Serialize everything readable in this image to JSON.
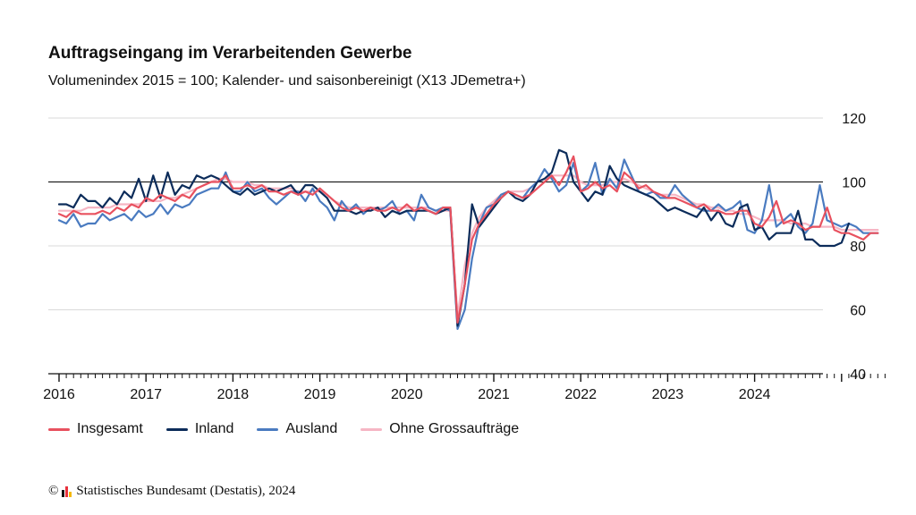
{
  "header": {
    "title": "Auftragseingang im Verarbeitenden Gewerbe",
    "subtitle": "Volumenindex 2015 = 100; Kalender- und saisonbereinigt (X13 JDemetra+)"
  },
  "footer": {
    "copyright_symbol": "©",
    "credit": "Statistisches Bundesamt (Destatis), 2024",
    "logo_colors": [
      "#111111",
      "#e8313c",
      "#f5b800"
    ]
  },
  "chart_data": {
    "type": "line",
    "x_start": "2016-01",
    "x_frequency": "monthly",
    "x_tick_labels": [
      "2016",
      "2017",
      "2018",
      "2019",
      "2020",
      "2021",
      "2022",
      "2023",
      "2024"
    ],
    "ylim": [
      40,
      120
    ],
    "y_ticks": [
      40,
      60,
      80,
      100,
      120
    ],
    "y_axis_side": "right",
    "reference_line": 100,
    "grid": "horizontal",
    "legend_position": "bottom-left",
    "series": [
      {
        "name": "Insgesamt",
        "color": "#e8515f",
        "values": [
          90,
          89,
          91,
          90,
          90,
          90,
          91,
          90,
          92,
          91,
          93,
          92,
          95,
          94,
          96,
          95,
          94,
          96,
          95,
          98,
          99,
          100,
          100,
          102,
          98,
          98,
          99,
          98,
          99,
          97,
          97,
          96,
          97,
          96,
          97,
          96,
          98,
          96,
          94,
          92,
          91,
          92,
          91,
          92,
          91,
          91,
          92,
          91,
          93,
          91,
          92,
          91,
          90,
          92,
          92,
          56,
          68,
          82,
          87,
          90,
          93,
          95,
          97,
          96,
          95,
          96,
          98,
          100,
          102,
          99,
          103,
          108,
          97,
          98,
          100,
          98,
          99,
          97,
          103,
          101,
          98,
          99,
          97,
          96,
          95,
          95,
          94,
          93,
          92,
          93,
          91,
          91,
          90,
          90,
          91,
          91,
          87,
          86,
          89,
          94,
          87,
          88,
          87,
          85,
          86,
          86,
          92,
          85,
          84,
          84,
          83,
          82,
          84,
          84
        ]
      },
      {
        "name": "Inland",
        "color": "#0c2c5a",
        "values": [
          93,
          93,
          92,
          96,
          94,
          94,
          92,
          95,
          93,
          97,
          95,
          101,
          94,
          102,
          95,
          103,
          96,
          99,
          98,
          102,
          101,
          102,
          101,
          99,
          97,
          96,
          98,
          96,
          97,
          98,
          97,
          98,
          99,
          96,
          99,
          99,
          97,
          95,
          91,
          91,
          91,
          90,
          91,
          91,
          92,
          89,
          91,
          90,
          91,
          91,
          91,
          91,
          90,
          91,
          92,
          55,
          68,
          93,
          86,
          89,
          92,
          95,
          97,
          95,
          94,
          96,
          100,
          101,
          103,
          110,
          109,
          100,
          97,
          94,
          97,
          96,
          105,
          101,
          99,
          98,
          97,
          96,
          95,
          93,
          91,
          92,
          91,
          90,
          89,
          92,
          88,
          91,
          87,
          86,
          92,
          93,
          85,
          86,
          82,
          84,
          84,
          84,
          91,
          82,
          82,
          80,
          80,
          80,
          81,
          87
        ]
      },
      {
        "name": "Ausland",
        "color": "#4a7bc0",
        "values": [
          88,
          87,
          90,
          86,
          87,
          87,
          90,
          88,
          89,
          90,
          88,
          91,
          89,
          90,
          93,
          90,
          93,
          92,
          93,
          96,
          97,
          98,
          98,
          103,
          97,
          97,
          100,
          97,
          98,
          95,
          93,
          95,
          97,
          97,
          94,
          98,
          94,
          92,
          88,
          94,
          91,
          93,
          90,
          92,
          91,
          92,
          94,
          90,
          91,
          88,
          96,
          92,
          91,
          92,
          91,
          54,
          60,
          76,
          87,
          92,
          93,
          96,
          97,
          96,
          95,
          98,
          100,
          104,
          101,
          97,
          99,
          106,
          97,
          99,
          106,
          96,
          101,
          98,
          107,
          102,
          97,
          96,
          97,
          95,
          95,
          99,
          96,
          94,
          92,
          91,
          91,
          93,
          91,
          92,
          94,
          85,
          84,
          88,
          99,
          86,
          88,
          90,
          86,
          84,
          87,
          99,
          88,
          87,
          86,
          87,
          86,
          84,
          84,
          84
        ]
      },
      {
        "name": "Ohne Grossaufträge",
        "color": "#f6b6c4",
        "values": [
          91,
          91,
          91,
          91,
          92,
          92,
          92,
          92,
          93,
          93,
          93,
          93,
          94,
          94,
          94,
          95,
          95,
          96,
          97,
          98,
          99,
          100,
          101,
          101,
          100,
          100,
          100,
          99,
          99,
          98,
          98,
          98,
          98,
          97,
          97,
          97,
          97,
          96,
          94,
          93,
          92,
          92,
          92,
          92,
          92,
          92,
          92,
          92,
          92,
          92,
          92,
          92,
          91,
          91,
          91,
          58,
          74,
          84,
          89,
          92,
          94,
          96,
          97,
          97,
          97,
          98,
          100,
          101,
          102,
          102,
          102,
          102,
          100,
          99,
          99,
          99,
          100,
          100,
          101,
          100,
          99,
          98,
          97,
          96,
          96,
          96,
          95,
          94,
          93,
          93,
          92,
          92,
          91,
          91,
          90,
          90,
          89,
          88,
          88,
          88,
          88,
          87,
          87,
          87,
          86,
          86,
          86,
          86,
          85,
          85,
          85,
          85,
          85,
          85
        ]
      }
    ]
  }
}
